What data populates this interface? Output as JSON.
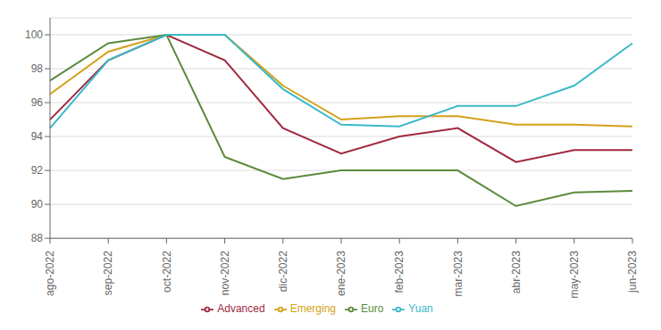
{
  "chart_data": {
    "type": "line",
    "categories": [
      "ago-2022",
      "sep-2022",
      "oct-2022",
      "nov-2022",
      "dic-2022",
      "ene-2023",
      "feb-2023",
      "mar-2023",
      "abr-2023",
      "may-2023",
      "jun-2023"
    ],
    "series": [
      {
        "name": "Advanced",
        "color": "#a0293e",
        "values": [
          95.0,
          98.5,
          100.0,
          98.5,
          94.5,
          93.0,
          94.0,
          94.5,
          92.5,
          93.2,
          93.2
        ]
      },
      {
        "name": "Emerging",
        "color": "#d4a017",
        "values": [
          96.5,
          99.0,
          100.0,
          100.0,
          97.0,
          95.0,
          95.2,
          95.2,
          94.7,
          94.7,
          94.6
        ]
      },
      {
        "name": "Euro",
        "color": "#5a8a3c",
        "values": [
          97.3,
          99.5,
          100.0,
          92.8,
          91.5,
          92.0,
          92.0,
          92.0,
          89.9,
          90.7,
          90.8
        ]
      },
      {
        "name": "Yuan",
        "color": "#3ab8c8",
        "values": [
          94.5,
          98.5,
          100.0,
          100.0,
          96.8,
          94.7,
          94.6,
          95.8,
          95.8,
          97.0,
          99.5
        ]
      }
    ],
    "ylim": [
      88,
      101
    ],
    "yticks": [
      88,
      90,
      92,
      94,
      96,
      98,
      100
    ],
    "grid": true,
    "legend": "bottom"
  }
}
